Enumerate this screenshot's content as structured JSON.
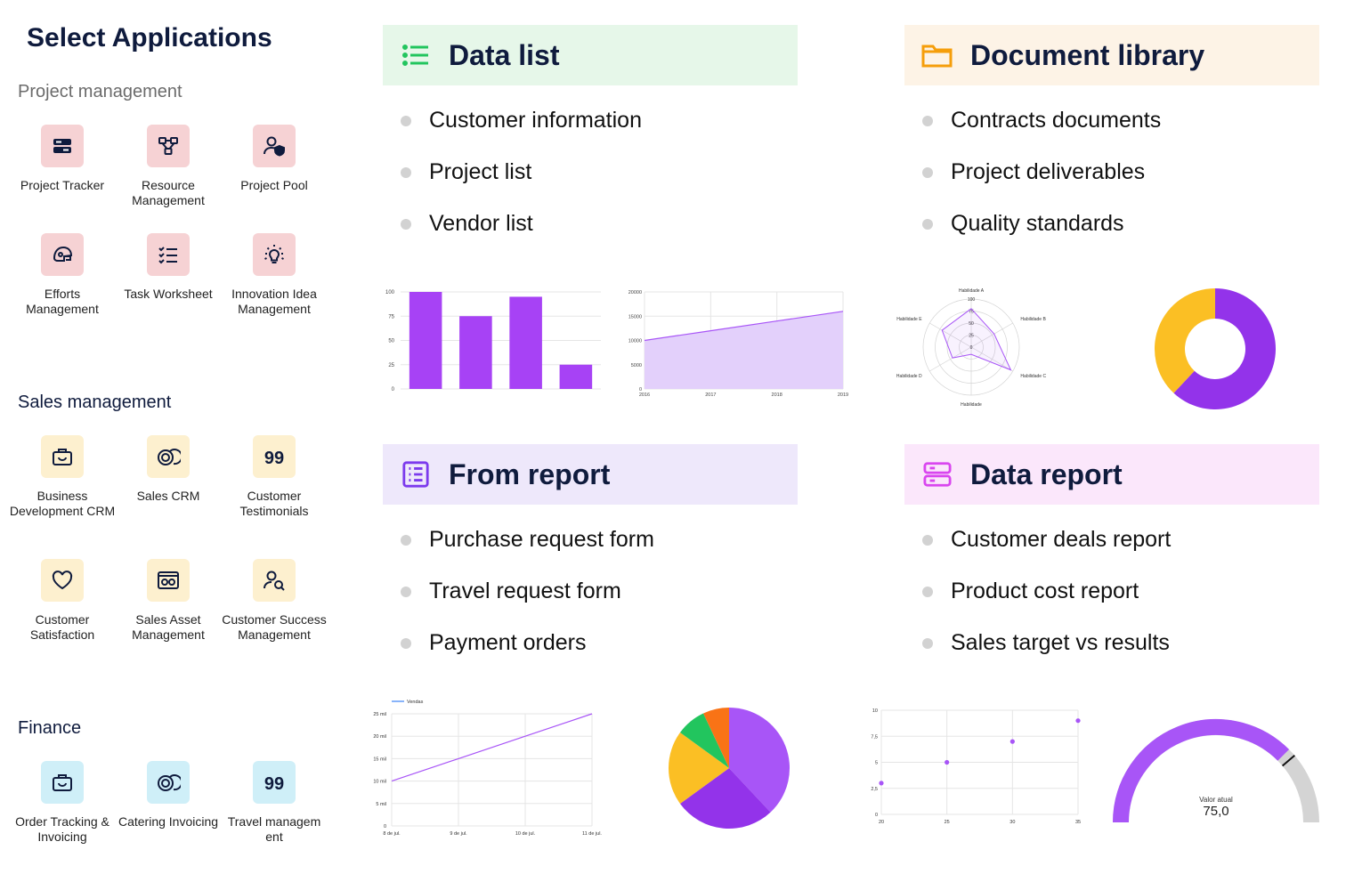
{
  "page_title": "Select Applications",
  "sections": {
    "project": {
      "label": "Project management",
      "apps": [
        {
          "label": "Project Tracker",
          "icon": "server-icon"
        },
        {
          "label": "Resource Management",
          "icon": "network-icon"
        },
        {
          "label": "Project Pool",
          "icon": "user-shield-icon"
        },
        {
          "label": "Efforts Management",
          "icon": "helmet-icon"
        },
        {
          "label": "Task Worksheet",
          "icon": "checklist-icon"
        },
        {
          "label": "Innovation Idea Management",
          "icon": "lightbulb-icon"
        }
      ]
    },
    "sales": {
      "label": "Sales management",
      "apps": [
        {
          "label": "Business Development CRM",
          "icon": "briefcase-icon"
        },
        {
          "label": "Sales CRM",
          "icon": "coins-icon"
        },
        {
          "label": "Customer Testimonials",
          "icon": "quote-icon"
        },
        {
          "label": "Customer Satisfaction",
          "icon": "heart-icon"
        },
        {
          "label": "Sales Asset Management",
          "icon": "asset-icon"
        },
        {
          "label": "Customer Success Management",
          "icon": "user-search-icon"
        }
      ]
    },
    "finance": {
      "label": "Finance",
      "apps": [
        {
          "label": "Order Tracking & Invoicing",
          "icon": "briefcase-icon"
        },
        {
          "label": "Catering Invoicing",
          "icon": "coins-icon"
        },
        {
          "label": "Travel managem ent",
          "icon": "quote-icon"
        }
      ]
    }
  },
  "panels": {
    "data_list": {
      "title": "Data list",
      "icon": "list-icon",
      "bg": "#e6f7e9",
      "accent": "#22c55e",
      "items": [
        "Customer information",
        "Project list",
        "Vendor list"
      ]
    },
    "document_library": {
      "title": "Document library",
      "icon": "folder-icon",
      "bg": "#fdf3e6",
      "accent": "#f59e0b",
      "items": [
        "Contracts documents",
        "Project deliverables",
        "Quality standards"
      ]
    },
    "from_report": {
      "title": "From report",
      "icon": "form-icon",
      "bg": "#eee8fb",
      "accent": "#7c3aed",
      "items": [
        "Purchase request form",
        "Travel request form",
        "Payment orders"
      ]
    },
    "data_report": {
      "title": "Data report",
      "icon": "database-icon",
      "bg": "#fbe7fb",
      "accent": "#d946ef",
      "items": [
        "Customer deals report",
        "Product cost report",
        "Sales target vs results"
      ]
    }
  },
  "chart_data": [
    {
      "type": "bar",
      "categories": [
        "",
        "",
        "",
        ""
      ],
      "values": [
        100,
        75,
        95,
        25
      ],
      "yticks": [
        "100",
        "75",
        "50",
        "25",
        "0"
      ],
      "ylim": [
        0,
        100
      ],
      "color": "#a742f5"
    },
    {
      "type": "area",
      "x": [
        "2016",
        "2017",
        "2018",
        "2019"
      ],
      "values": [
        10000,
        12000,
        14000,
        16000
      ],
      "yticks": [
        "20000",
        "15000",
        "10000",
        "5000",
        "0"
      ],
      "ylim": [
        0,
        20000
      ],
      "color": "#a855f7"
    },
    {
      "type": "radar",
      "axes": [
        "Habilidade A",
        "Habilidade B",
        "Habilidade C",
        "Habilidade",
        "Habilidade D",
        "Habilidade E"
      ],
      "values": [
        80,
        55,
        95,
        15,
        45,
        70
      ],
      "rticks": [
        "100",
        "75",
        "50",
        "25",
        "0"
      ],
      "color": "#a855f7"
    },
    {
      "type": "pie",
      "donut": true,
      "values": [
        62,
        38
      ],
      "colors": [
        "#9333ea",
        "#fbbf24"
      ]
    },
    {
      "type": "line",
      "legend": "Vendas",
      "x": [
        "8 de jul.",
        "9 de jul.",
        "10 de jul.",
        "11 de jul."
      ],
      "values": [
        10,
        15,
        20,
        25
      ],
      "yticks": [
        "25 mil",
        "20 mil",
        "15 mil",
        "10 mil",
        "5 mil",
        "0"
      ],
      "ylim": [
        0,
        25
      ],
      "color": "#a855f7"
    },
    {
      "type": "pie",
      "values": [
        38,
        27,
        20,
        8,
        7
      ],
      "colors": [
        "#a855f7",
        "#9333ea",
        "#fbbf24",
        "#22c55e",
        "#f97316"
      ]
    },
    {
      "type": "scatter",
      "points": [
        [
          20,
          3
        ],
        [
          25,
          5
        ],
        [
          30,
          7
        ],
        [
          35,
          9
        ]
      ],
      "xticks": [
        "20",
        "25",
        "30",
        "35"
      ],
      "yticks": [
        "10",
        "7,5",
        "5",
        "2,5",
        "0"
      ],
      "xlim": [
        20,
        35
      ],
      "ylim": [
        0,
        10
      ],
      "color": "#a855f7"
    },
    {
      "type": "gauge",
      "value": 75,
      "label": "Valor atual",
      "display": "75,0",
      "color": "#a855f7",
      "track": "#d4d4d4"
    }
  ]
}
